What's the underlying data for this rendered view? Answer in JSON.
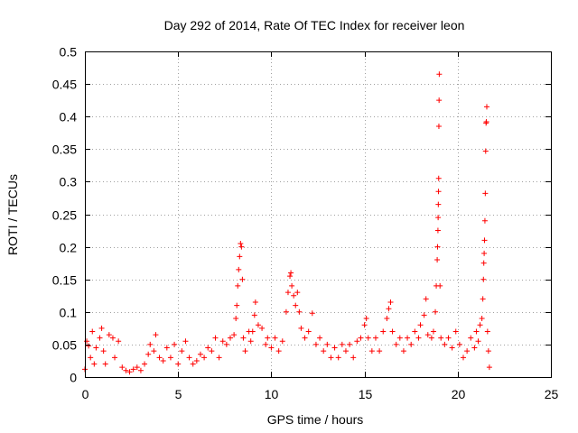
{
  "chart_data": {
    "type": "scatter",
    "title": "Day 292 of 2014, Rate Of TEC Index for receiver leon",
    "xlabel": "GPS time / hours",
    "ylabel": "ROTI / TECUs",
    "xlim": [
      0,
      25
    ],
    "ylim": [
      0,
      0.5
    ],
    "xticks": [
      0,
      5,
      10,
      15,
      20,
      25
    ],
    "yticks": [
      0,
      0.05,
      0.1,
      0.15,
      0.2,
      0.25,
      0.3,
      0.35,
      0.4,
      0.45,
      0.5
    ],
    "xtick_labels": [
      "0",
      "5",
      "10",
      "15",
      "20",
      "25"
    ],
    "ytick_labels": [
      "0",
      "0.05",
      "0.1",
      "0.15",
      "0.2",
      "0.25",
      "0.3",
      "0.35",
      "0.4",
      "0.45",
      "0.5"
    ],
    "grid": true,
    "marker": "+",
    "marker_color": "#ff0000",
    "series": [
      {
        "points": [
          [
            0.0,
            0.012
          ],
          [
            0.1,
            0.055
          ],
          [
            0.2,
            0.048
          ],
          [
            0.3,
            0.03
          ],
          [
            0.4,
            0.07
          ],
          [
            0.5,
            0.02
          ],
          [
            0.6,
            0.045
          ],
          [
            0.8,
            0.06
          ],
          [
            0.9,
            0.075
          ],
          [
            1.0,
            0.04
          ],
          [
            1.1,
            0.02
          ],
          [
            1.3,
            0.065
          ],
          [
            1.5,
            0.06
          ],
          [
            1.6,
            0.03
          ],
          [
            1.8,
            0.055
          ],
          [
            2.0,
            0.015
          ],
          [
            2.2,
            0.01
          ],
          [
            2.4,
            0.008
          ],
          [
            2.6,
            0.012
          ],
          [
            2.8,
            0.015
          ],
          [
            3.0,
            0.01
          ],
          [
            3.2,
            0.02
          ],
          [
            3.4,
            0.035
          ],
          [
            3.5,
            0.05
          ],
          [
            3.7,
            0.04
          ],
          [
            3.8,
            0.065
          ],
          [
            4.0,
            0.03
          ],
          [
            4.2,
            0.025
          ],
          [
            4.4,
            0.045
          ],
          [
            4.6,
            0.03
          ],
          [
            4.8,
            0.05
          ],
          [
            5.0,
            0.02
          ],
          [
            5.2,
            0.04
          ],
          [
            5.4,
            0.055
          ],
          [
            5.6,
            0.03
          ],
          [
            5.8,
            0.02
          ],
          [
            6.0,
            0.025
          ],
          [
            6.2,
            0.035
          ],
          [
            6.4,
            0.03
          ],
          [
            6.6,
            0.045
          ],
          [
            6.8,
            0.04
          ],
          [
            7.0,
            0.06
          ],
          [
            7.2,
            0.03
          ],
          [
            7.4,
            0.055
          ],
          [
            7.6,
            0.05
          ],
          [
            7.8,
            0.06
          ],
          [
            8.0,
            0.065
          ],
          [
            8.1,
            0.09
          ],
          [
            8.15,
            0.11
          ],
          [
            8.2,
            0.14
          ],
          [
            8.25,
            0.165
          ],
          [
            8.3,
            0.185
          ],
          [
            8.35,
            0.205
          ],
          [
            8.4,
            0.2
          ],
          [
            8.45,
            0.15
          ],
          [
            8.5,
            0.06
          ],
          [
            8.6,
            0.04
          ],
          [
            8.8,
            0.07
          ],
          [
            8.9,
            0.055
          ],
          [
            9.0,
            0.07
          ],
          [
            9.1,
            0.095
          ],
          [
            9.15,
            0.115
          ],
          [
            9.3,
            0.08
          ],
          [
            9.5,
            0.075
          ],
          [
            9.7,
            0.05
          ],
          [
            9.8,
            0.06
          ],
          [
            10.0,
            0.045
          ],
          [
            10.2,
            0.06
          ],
          [
            10.4,
            0.04
          ],
          [
            10.6,
            0.055
          ],
          [
            10.8,
            0.1
          ],
          [
            10.9,
            0.13
          ],
          [
            11.0,
            0.155
          ],
          [
            11.05,
            0.16
          ],
          [
            11.1,
            0.14
          ],
          [
            11.2,
            0.125
          ],
          [
            11.3,
            0.11
          ],
          [
            11.4,
            0.13
          ],
          [
            11.5,
            0.1
          ],
          [
            11.6,
            0.075
          ],
          [
            11.8,
            0.06
          ],
          [
            12.0,
            0.07
          ],
          [
            12.2,
            0.098
          ],
          [
            12.4,
            0.05
          ],
          [
            12.6,
            0.06
          ],
          [
            12.8,
            0.04
          ],
          [
            13.0,
            0.05
          ],
          [
            13.2,
            0.03
          ],
          [
            13.4,
            0.045
          ],
          [
            13.6,
            0.03
          ],
          [
            13.8,
            0.05
          ],
          [
            14.0,
            0.04
          ],
          [
            14.2,
            0.05
          ],
          [
            14.4,
            0.03
          ],
          [
            14.6,
            0.055
          ],
          [
            14.8,
            0.06
          ],
          [
            15.0,
            0.08
          ],
          [
            15.1,
            0.09
          ],
          [
            15.2,
            0.06
          ],
          [
            15.4,
            0.04
          ],
          [
            15.6,
            0.06
          ],
          [
            15.8,
            0.04
          ],
          [
            16.0,
            0.07
          ],
          [
            16.2,
            0.09
          ],
          [
            16.3,
            0.105
          ],
          [
            16.4,
            0.115
          ],
          [
            16.5,
            0.07
          ],
          [
            16.7,
            0.05
          ],
          [
            16.9,
            0.06
          ],
          [
            17.1,
            0.04
          ],
          [
            17.3,
            0.06
          ],
          [
            17.5,
            0.05
          ],
          [
            17.7,
            0.07
          ],
          [
            17.9,
            0.06
          ],
          [
            18.0,
            0.08
          ],
          [
            18.2,
            0.095
          ],
          [
            18.3,
            0.12
          ],
          [
            18.4,
            0.065
          ],
          [
            18.6,
            0.06
          ],
          [
            18.7,
            0.07
          ],
          [
            18.8,
            0.1
          ],
          [
            18.85,
            0.14
          ],
          [
            18.9,
            0.18
          ],
          [
            18.92,
            0.2
          ],
          [
            18.94,
            0.225
          ],
          [
            18.95,
            0.245
          ],
          [
            18.96,
            0.265
          ],
          [
            18.97,
            0.285
          ],
          [
            18.98,
            0.305
          ],
          [
            18.99,
            0.385
          ],
          [
            19.0,
            0.425
          ],
          [
            19.01,
            0.465
          ],
          [
            19.05,
            0.14
          ],
          [
            19.1,
            0.06
          ],
          [
            19.3,
            0.05
          ],
          [
            19.5,
            0.06
          ],
          [
            19.7,
            0.045
          ],
          [
            19.9,
            0.07
          ],
          [
            20.1,
            0.05
          ],
          [
            20.3,
            0.03
          ],
          [
            20.5,
            0.04
          ],
          [
            20.7,
            0.06
          ],
          [
            20.9,
            0.045
          ],
          [
            21.0,
            0.07
          ],
          [
            21.1,
            0.055
          ],
          [
            21.2,
            0.08
          ],
          [
            21.3,
            0.09
          ],
          [
            21.35,
            0.12
          ],
          [
            21.38,
            0.15
          ],
          [
            21.4,
            0.175
          ],
          [
            21.42,
            0.19
          ],
          [
            21.44,
            0.21
          ],
          [
            21.46,
            0.24
          ],
          [
            21.48,
            0.282
          ],
          [
            21.5,
            0.347
          ],
          [
            21.52,
            0.39
          ],
          [
            21.54,
            0.392
          ],
          [
            21.56,
            0.415
          ],
          [
            21.6,
            0.07
          ],
          [
            21.65,
            0.04
          ],
          [
            21.7,
            0.015
          ]
        ]
      }
    ]
  }
}
